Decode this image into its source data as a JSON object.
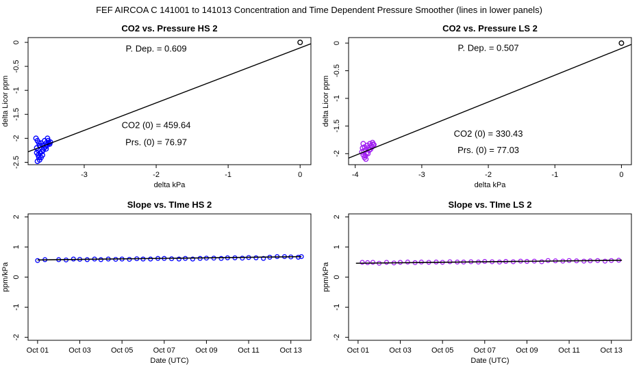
{
  "figure": {
    "suptitle": "FEF   AIRCOA C   141001 to 141013   Concentration and Time Dependent Pressure Smoother (lines in lower panels)"
  },
  "chart_data": [
    {
      "id": "hs-scatter",
      "type": "scatter",
      "title": "CO2 vs. Pressure HS 2",
      "xlabel": "delta kPa",
      "ylabel": "delta Licor ppm",
      "xlim": [
        -3.78,
        0.15
      ],
      "ylim": [
        -2.55,
        0.1
      ],
      "xticks": [
        -3,
        -2,
        -1,
        0
      ],
      "yticks": [
        0.0,
        -0.5,
        -1.0,
        -1.5,
        -2.0,
        -2.5
      ],
      "point_color": "#0000ff",
      "fit_line": {
        "x": [
          -3.9,
          0.2
        ],
        "y": [
          -2.3505,
          0.0
        ]
      },
      "points": [
        [
          -3.67,
          -2.0
        ],
        [
          -3.65,
          -2.05
        ],
        [
          -3.63,
          -2.1
        ],
        [
          -3.62,
          -2.15
        ],
        [
          -3.66,
          -2.2
        ],
        [
          -3.64,
          -2.25
        ],
        [
          -3.6,
          -2.1
        ],
        [
          -3.58,
          -2.15
        ],
        [
          -3.56,
          -2.2
        ],
        [
          -3.55,
          -2.05
        ],
        [
          -3.53,
          -2.1
        ],
        [
          -3.52,
          -2.15
        ],
        [
          -3.51,
          -2.0
        ],
        [
          -3.5,
          -2.05
        ],
        [
          -3.49,
          -2.1
        ],
        [
          -3.66,
          -2.3
        ],
        [
          -3.64,
          -2.35
        ],
        [
          -3.63,
          -2.4
        ],
        [
          -3.62,
          -2.45
        ],
        [
          -3.65,
          -2.48
        ],
        [
          -3.61,
          -2.3
        ],
        [
          -3.59,
          -2.28
        ],
        [
          -3.57,
          -2.25
        ],
        [
          -3.54,
          -2.18
        ],
        [
          -3.53,
          -2.22
        ],
        [
          -3.48,
          -2.12
        ],
        [
          -3.47,
          -2.08
        ],
        [
          -3.6,
          -2.4
        ],
        [
          -3.58,
          -2.35
        ],
        [
          0.0,
          0.0
        ]
      ],
      "annotations": {
        "p_dep": "P. Dep. =  0.609",
        "co2_0": "CO2 (0) =  459.64",
        "prs_0": "Prs. (0) =  76.97"
      },
      "annotation_positions": {
        "p_dep": [
          -2.0,
          -0.12
        ],
        "co2_0": [
          -2.0,
          -1.72
        ],
        "prs_0": [
          -2.0,
          -2.07
        ]
      }
    },
    {
      "id": "ls-scatter",
      "type": "scatter",
      "title": "CO2 vs. Pressure LS 2",
      "xlabel": "delta kPa",
      "ylabel": "delta Licor ppm",
      "xlim": [
        -4.1,
        0.15
      ],
      "ylim": [
        -2.2,
        0.1
      ],
      "xticks": [
        -4,
        -3,
        -2,
        -1,
        0
      ],
      "yticks": [
        0.0,
        -0.5,
        -1.0,
        -1.5,
        -2.0
      ],
      "point_color": "#a020f0",
      "fit_line": {
        "x": [
          -4.2,
          0.2
        ],
        "y": [
          -2.1294,
          0.0
        ]
      },
      "points": [
        [
          -3.88,
          -1.82
        ],
        [
          -3.86,
          -1.88
        ],
        [
          -3.84,
          -1.93
        ],
        [
          -3.82,
          -1.85
        ],
        [
          -3.8,
          -1.9
        ],
        [
          -3.78,
          -1.82
        ],
        [
          -3.76,
          -1.86
        ],
        [
          -3.74,
          -1.8
        ],
        [
          -3.72,
          -1.84
        ],
        [
          -3.9,
          -1.97
        ],
        [
          -3.88,
          -2.02
        ],
        [
          -3.86,
          -2.07
        ],
        [
          -3.84,
          -2.1
        ],
        [
          -3.87,
          -1.95
        ],
        [
          -3.83,
          -1.99
        ],
        [
          -3.81,
          -2.0
        ],
        [
          -3.79,
          -1.94
        ],
        [
          -3.77,
          -1.92
        ],
        [
          -3.85,
          -2.04
        ],
        [
          -3.89,
          -1.9
        ],
        [
          -3.75,
          -1.88
        ],
        [
          -3.73,
          -1.83
        ],
        [
          0.0,
          0.0
        ]
      ],
      "annotations": {
        "p_dep": "P. Dep. =  0.507",
        "co2_0": "CO2 (0) =  330.43",
        "prs_0": "Prs. (0) =  77.03"
      },
      "annotation_positions": {
        "p_dep": [
          -2.0,
          -0.08
        ],
        "co2_0": [
          -2.0,
          -1.63
        ],
        "prs_0": [
          -2.0,
          -1.93
        ]
      }
    },
    {
      "id": "hs-slope",
      "type": "line",
      "title": "Slope vs. TIme HS 2",
      "xlabel": "Date (UTC)",
      "ylabel": "ppm/kPa",
      "xlim": [
        0.55,
        13.95
      ],
      "ylim": [
        -2.1,
        2.1
      ],
      "xticks": [
        1,
        3,
        5,
        7,
        9,
        11,
        13
      ],
      "xticklabels": [
        "Oct 01",
        "Oct 03",
        "Oct 05",
        "Oct 07",
        "Oct 09",
        "Oct 11",
        "Oct 13"
      ],
      "yticks": [
        -2,
        -1,
        0,
        1,
        2
      ],
      "point_color": "#0000ff",
      "line": {
        "x": [
          1.0,
          13.5
        ],
        "y": [
          0.57,
          0.68
        ]
      },
      "series_x": [
        1.0,
        1.35,
        2.0,
        2.35,
        2.7,
        3.0,
        3.35,
        3.7,
        4.0,
        4.35,
        4.7,
        5.0,
        5.35,
        5.7,
        6.0,
        6.35,
        6.7,
        7.0,
        7.35,
        7.7,
        8.0,
        8.35,
        8.7,
        9.0,
        9.35,
        9.7,
        10.0,
        10.35,
        10.7,
        11.0,
        11.35,
        11.7,
        12.0,
        12.35,
        12.7,
        13.0,
        13.35,
        13.5
      ],
      "series_y": [
        0.55,
        0.58,
        0.58,
        0.57,
        0.6,
        0.59,
        0.58,
        0.6,
        0.58,
        0.6,
        0.59,
        0.6,
        0.59,
        0.61,
        0.6,
        0.6,
        0.62,
        0.62,
        0.61,
        0.6,
        0.62,
        0.6,
        0.62,
        0.63,
        0.63,
        0.62,
        0.64,
        0.64,
        0.63,
        0.65,
        0.64,
        0.62,
        0.66,
        0.68,
        0.68,
        0.67,
        0.66,
        0.68
      ]
    },
    {
      "id": "ls-slope",
      "type": "line",
      "title": "Slope vs. TIme LS 2",
      "xlabel": "Date (UTC)",
      "ylabel": "ppm/kPa",
      "xlim": [
        0.55,
        13.95
      ],
      "ylim": [
        -2.1,
        2.1
      ],
      "xticks": [
        1,
        3,
        5,
        7,
        9,
        11,
        13
      ],
      "xticklabels": [
        "Oct 01",
        "Oct 03",
        "Oct 05",
        "Oct 07",
        "Oct 09",
        "Oct 11",
        "Oct 13"
      ],
      "yticks": [
        -2,
        -1,
        0,
        1,
        2
      ],
      "point_color": "#a020f0",
      "line": {
        "x": [
          0.9,
          13.5
        ],
        "y": [
          0.46,
          0.56
        ]
      },
      "series_x": [
        1.2,
        1.45,
        1.7,
        2.0,
        2.35,
        2.7,
        3.0,
        3.35,
        3.7,
        4.0,
        4.35,
        4.7,
        5.0,
        5.35,
        5.7,
        6.0,
        6.35,
        6.7,
        7.0,
        7.35,
        7.7,
        8.0,
        8.35,
        8.7,
        9.0,
        9.35,
        9.7,
        10.0,
        10.35,
        10.7,
        11.0,
        11.35,
        11.7,
        12.0,
        12.35,
        12.7,
        13.0,
        13.35
      ],
      "series_y": [
        0.49,
        0.48,
        0.49,
        0.46,
        0.49,
        0.47,
        0.49,
        0.5,
        0.48,
        0.5,
        0.49,
        0.5,
        0.49,
        0.51,
        0.5,
        0.5,
        0.51,
        0.5,
        0.52,
        0.51,
        0.5,
        0.52,
        0.51,
        0.53,
        0.52,
        0.53,
        0.51,
        0.55,
        0.54,
        0.53,
        0.55,
        0.54,
        0.53,
        0.54,
        0.55,
        0.53,
        0.55,
        0.56
      ]
    }
  ]
}
